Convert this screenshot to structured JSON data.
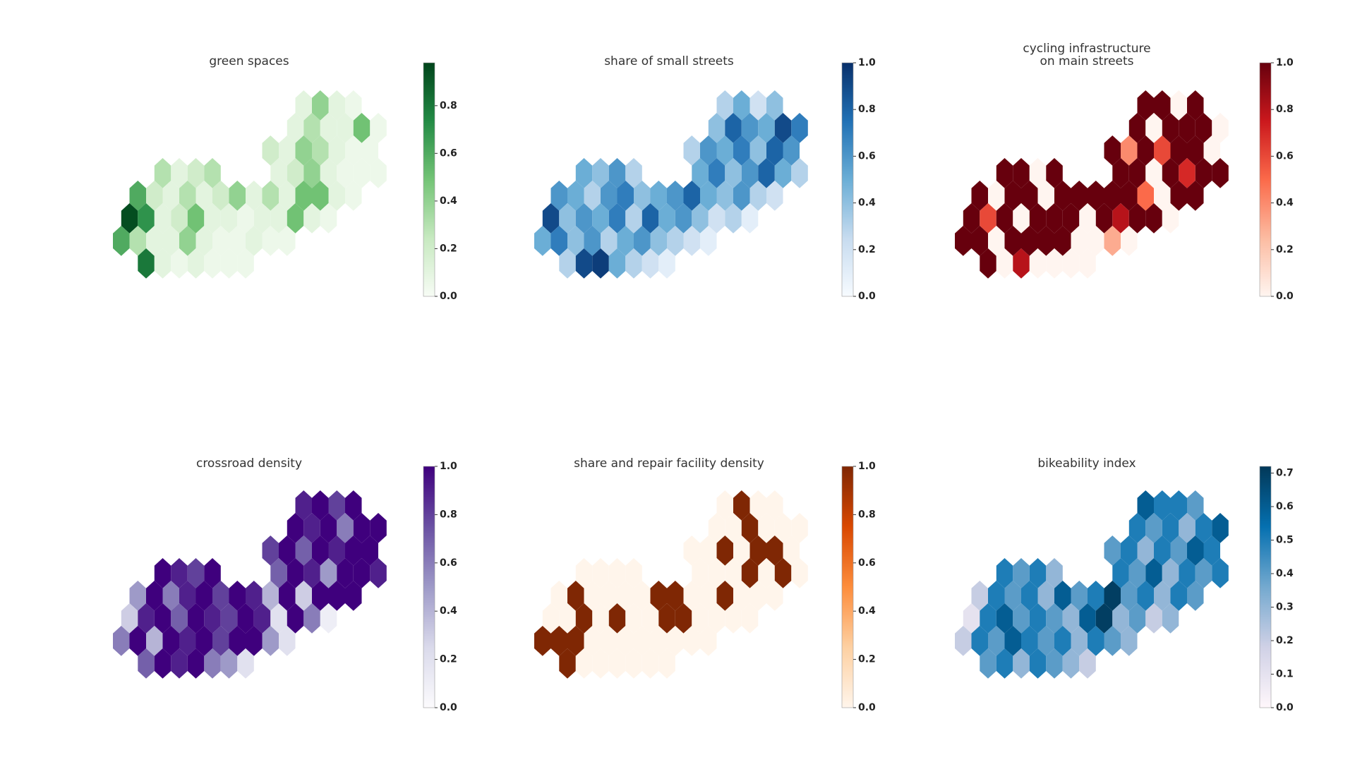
{
  "chart_data": [
    {
      "type": "hexmap",
      "title": [
        "green spaces"
      ],
      "colors": [
        "#f7fcf5",
        "#c7e9c0",
        "#74c476",
        "#238b45",
        "#00441b"
      ],
      "ylim": [
        0,
        0.98
      ],
      "yticks": [
        {
          "value": 0,
          "label": "0.0"
        },
        {
          "value": 0.2,
          "label": "0.2"
        },
        {
          "value": 0.4,
          "label": "0.4"
        },
        {
          "value": 0.6,
          "label": "0.6"
        },
        {
          "value": 0.8,
          "label": "0.8"
        }
      ],
      "values": [
        0.1,
        0.4,
        0.1,
        0.05,
        0.1,
        0.3,
        0.1,
        0.1,
        0.5,
        0.05,
        0.2,
        0.1,
        0.4,
        0.3,
        0.1,
        0.05,
        0.05,
        0.3,
        0.1,
        0.2,
        0.3,
        0.1,
        0.2,
        0.4,
        0.1,
        0.05,
        0.05,
        0.05,
        0.6,
        0.2,
        0.1,
        0.3,
        0.1,
        0.2,
        0.4,
        0.1,
        0.3,
        0.1,
        0.5,
        0.5,
        0.1,
        0.05,
        0.95,
        0.7,
        0.1,
        0.2,
        0.5,
        0.1,
        0.1,
        0.05,
        0.1,
        0.1,
        0.5,
        0.1,
        0.05,
        0.6,
        0.3,
        0.1,
        0.1,
        0.4,
        0.1,
        0.05,
        0.05,
        0.1,
        0.05,
        0.05,
        0.8,
        0.1,
        0.05,
        0.1,
        0.05,
        0.05,
        0.05
      ]
    },
    {
      "type": "hexmap",
      "title": [
        "share of small streets"
      ],
      "colors": [
        "#f7fbff",
        "#c6dbef",
        "#6baed6",
        "#2171b5",
        "#08306b"
      ],
      "ylim": [
        0,
        1
      ],
      "yticks": [
        {
          "value": 0,
          "label": "0.0"
        },
        {
          "value": 0.2,
          "label": "0.2"
        },
        {
          "value": 0.4,
          "label": "0.4"
        },
        {
          "value": 0.6,
          "label": "0.6"
        },
        {
          "value": 0.8,
          "label": "0.8"
        },
        {
          "value": 1,
          "label": "1.0"
        }
      ],
      "values": [
        0.3,
        0.5,
        0.2,
        0.4,
        0.4,
        0.8,
        0.6,
        0.5,
        0.9,
        0.7,
        0.3,
        0.6,
        0.5,
        0.7,
        0.4,
        0.8,
        0.6,
        0.5,
        0.4,
        0.6,
        0.3,
        0.5,
        0.7,
        0.4,
        0.6,
        0.8,
        0.5,
        0.3,
        0.6,
        0.5,
        0.3,
        0.6,
        0.7,
        0.4,
        0.5,
        0.6,
        0.8,
        0.5,
        0.4,
        0.6,
        0.3,
        0.2,
        0.9,
        0.4,
        0.6,
        0.5,
        0.7,
        0.3,
        0.8,
        0.5,
        0.6,
        0.4,
        0.2,
        0.3,
        0.1,
        0.5,
        0.7,
        0.4,
        0.6,
        0.3,
        0.5,
        0.6,
        0.4,
        0.3,
        0.2,
        0.1,
        0.3,
        0.9,
        0.95,
        0.5,
        0.3,
        0.2,
        0.1
      ]
    },
    {
      "type": "hexmap",
      "title": [
        "cycling infrastructure",
        "on main streets"
      ],
      "colors": [
        "#fff5f0",
        "#fcbba1",
        "#fb6a4a",
        "#cb181d",
        "#67000d"
      ],
      "ylim": [
        0,
        1
      ],
      "yticks": [
        {
          "value": 0,
          "label": "0.0"
        },
        {
          "value": 0.2,
          "label": "0.2"
        },
        {
          "value": 0.4,
          "label": "0.4"
        },
        {
          "value": 0.6,
          "label": "0.6"
        },
        {
          "value": 0.8,
          "label": "0.8"
        },
        {
          "value": 1,
          "label": "1.0"
        }
      ],
      "values": [
        1,
        1,
        0,
        1,
        1,
        0,
        1,
        1,
        1,
        0,
        1,
        0.4,
        1,
        0.6,
        1,
        1,
        0,
        1,
        1,
        0,
        1,
        1,
        1,
        0,
        1,
        0.7,
        1,
        1,
        1,
        0,
        1,
        1,
        0,
        1,
        1,
        1,
        1,
        1,
        0.5,
        0,
        1,
        1,
        1,
        0.6,
        1,
        0,
        1,
        1,
        1,
        0,
        1,
        0.8,
        1,
        1,
        0,
        1,
        1,
        0,
        1,
        1,
        1,
        1,
        0,
        0,
        0.3,
        0,
        1,
        0,
        0.8,
        0,
        0,
        0,
        0
      ]
    },
    {
      "type": "hexmap",
      "title": [
        "crossroad density"
      ],
      "colors": [
        "#fcfbfd",
        "#dadaeb",
        "#9e9ac8",
        "#6a51a3",
        "#3f007d"
      ],
      "ylim": [
        0,
        1
      ],
      "yticks": [
        {
          "value": 0,
          "label": "0.0"
        },
        {
          "value": 0.2,
          "label": "0.2"
        },
        {
          "value": 0.4,
          "label": "0.4"
        },
        {
          "value": 0.6,
          "label": "0.6"
        },
        {
          "value": 0.8,
          "label": "0.8"
        },
        {
          "value": 1,
          "label": "1.0"
        }
      ],
      "values": [
        0.9,
        1,
        0.8,
        1,
        1,
        0.9,
        1,
        0.6,
        1,
        1,
        0.8,
        1,
        0.7,
        1,
        0.9,
        1,
        1,
        1,
        0.9,
        0.8,
        1,
        0.7,
        1,
        0.9,
        0.5,
        1,
        1,
        0.9,
        0.5,
        1,
        0.6,
        0.9,
        1,
        0.8,
        1,
        0.9,
        0.4,
        1,
        0.3,
        1,
        1,
        1,
        0.3,
        0.9,
        1,
        0.7,
        1,
        0.9,
        0.8,
        1,
        0.9,
        0.2,
        1,
        0.6,
        0.1,
        0.6,
        1,
        0.4,
        1,
        0.9,
        1,
        0.8,
        1,
        1,
        0.5,
        0.2,
        0.7,
        1,
        0.9,
        1,
        0.6,
        0.5,
        0.2
      ]
    },
    {
      "type": "hexmap",
      "title": [
        "share and repair facility density"
      ],
      "colors": [
        "#fff5eb",
        "#fdd0a2",
        "#fd8d3c",
        "#d94801",
        "#7f2704"
      ],
      "ylim": [
        0,
        1
      ],
      "yticks": [
        {
          "value": 0,
          "label": "0.0"
        },
        {
          "value": 0.2,
          "label": "0.2"
        },
        {
          "value": 0.4,
          "label": "0.4"
        },
        {
          "value": 0.6,
          "label": "0.6"
        },
        {
          "value": 0.8,
          "label": "0.8"
        },
        {
          "value": 1,
          "label": "1.0"
        }
      ],
      "values": [
        0,
        1,
        0,
        0,
        0,
        0,
        1,
        0,
        0,
        0,
        0,
        0,
        1,
        0,
        1,
        1,
        0,
        0,
        0,
        0,
        0,
        0,
        0,
        0,
        1,
        0,
        1,
        0,
        0,
        1,
        0,
        0,
        0,
        0,
        1,
        1,
        0,
        0,
        1,
        0,
        0,
        0,
        0,
        0,
        1,
        0,
        1,
        0,
        0,
        1,
        1,
        0,
        0,
        0,
        0,
        1,
        1,
        1,
        0,
        0,
        0,
        0,
        0,
        0,
        0,
        0,
        1,
        0,
        0,
        0,
        0,
        0,
        0
      ]
    },
    {
      "type": "hexmap",
      "title": [
        "bikeability index"
      ],
      "colors": [
        "#fff7fb",
        "#d0d1e6",
        "#74a9cf",
        "#0570b0",
        "#023858"
      ],
      "ylim": [
        0,
        0.72
      ],
      "yticks": [
        {
          "value": 0,
          "label": "0.0"
        },
        {
          "value": 0.1,
          "label": "0.1"
        },
        {
          "value": 0.2,
          "label": "0.2"
        },
        {
          "value": 0.3,
          "label": "0.3"
        },
        {
          "value": 0.4,
          "label": "0.4"
        },
        {
          "value": 0.5,
          "label": "0.5"
        },
        {
          "value": 0.6,
          "label": "0.6"
        },
        {
          "value": 0.7,
          "label": "0.7"
        }
      ],
      "values": [
        0.6,
        0.5,
        0.5,
        0.4,
        0.5,
        0.4,
        0.5,
        0.3,
        0.5,
        0.6,
        0.4,
        0.5,
        0.3,
        0.5,
        0.4,
        0.6,
        0.5,
        0.5,
        0.4,
        0.5,
        0.3,
        0.5,
        0.4,
        0.6,
        0.3,
        0.5,
        0.4,
        0.5,
        0.2,
        0.5,
        0.4,
        0.5,
        0.3,
        0.6,
        0.4,
        0.5,
        0.7,
        0.4,
        0.5,
        0.3,
        0.5,
        0.4,
        0.1,
        0.5,
        0.6,
        0.4,
        0.5,
        0.4,
        0.3,
        0.6,
        0.7,
        0.3,
        0.4,
        0.2,
        0.3,
        0.2,
        0.5,
        0.4,
        0.6,
        0.5,
        0.4,
        0.5,
        0.3,
        0.5,
        0.4,
        0.3,
        0.4,
        0.5,
        0.3,
        0.5,
        0.4,
        0.3,
        0.2
      ]
    }
  ]
}
